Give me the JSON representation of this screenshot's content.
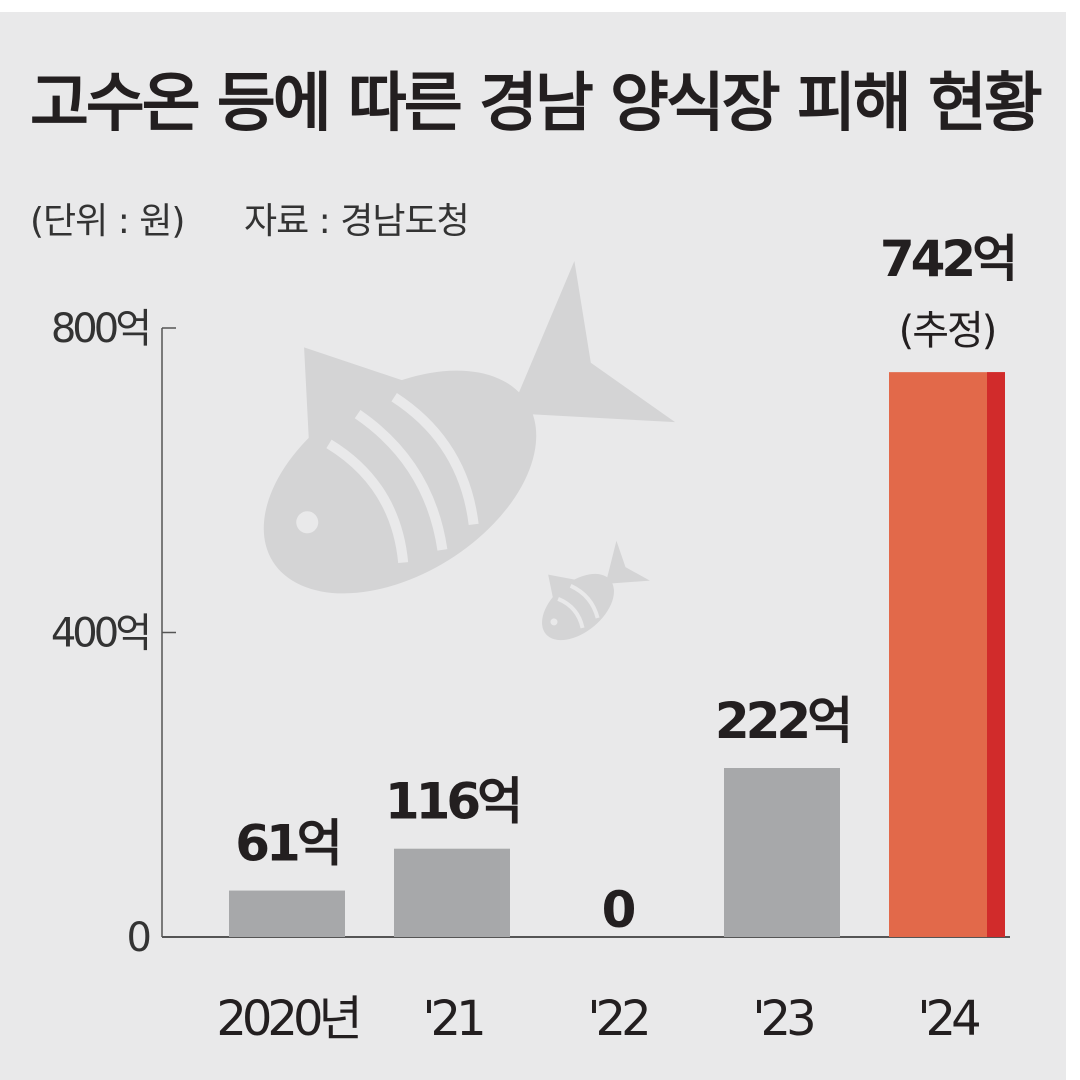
{
  "title": "고수온 등에 따른 경남 양식장 피해 현황",
  "unit_label": "(단위 : 원)",
  "source_label": "자료 : 경남도청",
  "colors": {
    "background": "#e9e9ea",
    "bar": "#a7a8aa",
    "highlight_bar": "#e2694a",
    "highlight_edge": "#d12b2b",
    "axis": "#555555",
    "fish": "#d4d4d5"
  },
  "icons": [
    "fish-icon",
    "small-fish-icon"
  ],
  "chart_data": {
    "type": "bar",
    "title": "고수온 등에 따른 경남 양식장 피해 현황",
    "xlabel": "",
    "ylabel": "",
    "categories": [
      "2020년",
      "'21",
      "'22",
      "'23",
      "'24"
    ],
    "values": [
      61,
      116,
      0,
      222,
      742
    ],
    "data_labels": [
      "61억",
      "116억",
      "0",
      "222억",
      "742억"
    ],
    "highlight_index": 4,
    "highlight_note": "(추정)",
    "ylim": [
      0,
      800
    ],
    "yticks": [
      0,
      400,
      800
    ],
    "ytick_labels": [
      "0",
      "400억",
      "800억"
    ],
    "grid": false,
    "legend": "none"
  }
}
